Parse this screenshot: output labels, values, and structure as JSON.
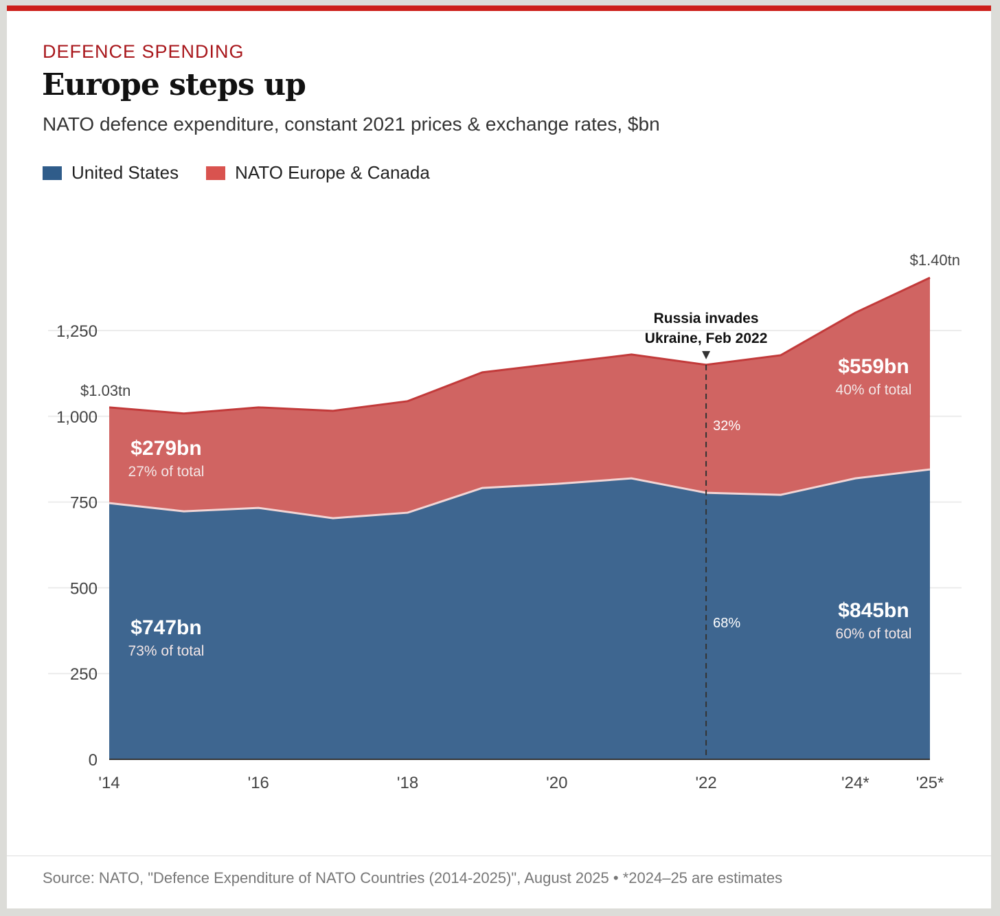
{
  "header": {
    "kicker": "DEFENCE SPENDING",
    "title": "Europe steps up",
    "subtitle": "NATO defence expenditure, constant 2021 prices & exchange rates, $bn"
  },
  "footer": {
    "source": "Source: NATO, \"Defence Expenditure of NATO Countries (2014-2025)\", August 2025 • *2024–25 are estimates"
  },
  "colors": {
    "us": "#3e6690",
    "europe": "#d06462",
    "us_legend": "#2f5c8a",
    "europe_legend": "#d9534f",
    "top_line": "#c23a3a",
    "kicker": "#a8161b"
  },
  "chart_data": {
    "type": "area",
    "stacked": true,
    "title": "Europe steps up",
    "subtitle": "NATO defence expenditure, constant 2021 prices & exchange rates, $bn",
    "x": [
      2014,
      2015,
      2016,
      2017,
      2018,
      2019,
      2020,
      2021,
      2022,
      2023,
      2024,
      2025
    ],
    "x_ticks": [
      {
        "value": 2014,
        "label": "'14"
      },
      {
        "value": 2016,
        "label": "'16"
      },
      {
        "value": 2018,
        "label": "'18"
      },
      {
        "value": 2020,
        "label": "'20"
      },
      {
        "value": 2022,
        "label": "'22"
      },
      {
        "value": 2024,
        "label": "'24*"
      },
      {
        "value": 2025,
        "label": "'25*"
      }
    ],
    "y_ticks": [
      {
        "value": 0,
        "label": "0"
      },
      {
        "value": 250,
        "label": "250"
      },
      {
        "value": 500,
        "label": "500"
      },
      {
        "value": 750,
        "label": "750"
      },
      {
        "value": 1000,
        "label": "1,000"
      },
      {
        "value": 1250,
        "label": "1,250"
      }
    ],
    "ylim": [
      0,
      1400
    ],
    "grid": "horizontal",
    "legend_placement": "top-left",
    "series": [
      {
        "name": "United States",
        "values": [
          747,
          723,
          733,
          703,
          719,
          791,
          803,
          819,
          777,
          771,
          819,
          845
        ]
      },
      {
        "name": "NATO Europe & Canada",
        "values": [
          279,
          285,
          293,
          313,
          325,
          337,
          351,
          361,
          373,
          407,
          483,
          559
        ]
      }
    ],
    "annotations": {
      "start_total": "$1.03tn",
      "end_total": "$1.40tn",
      "start_europe_value": "$279bn",
      "start_europe_share": "27% of total",
      "start_us_value": "$747bn",
      "start_us_share": "73% of total",
      "end_europe_value": "$559bn",
      "end_europe_share": "40% of total",
      "end_us_value": "$845bn",
      "end_us_share": "60% of total",
      "event_line1": "Russia invades",
      "event_line2": "Ukraine, Feb 2022",
      "event_year": 2022,
      "event_europe_share": "32%",
      "event_us_share": "68%"
    }
  }
}
